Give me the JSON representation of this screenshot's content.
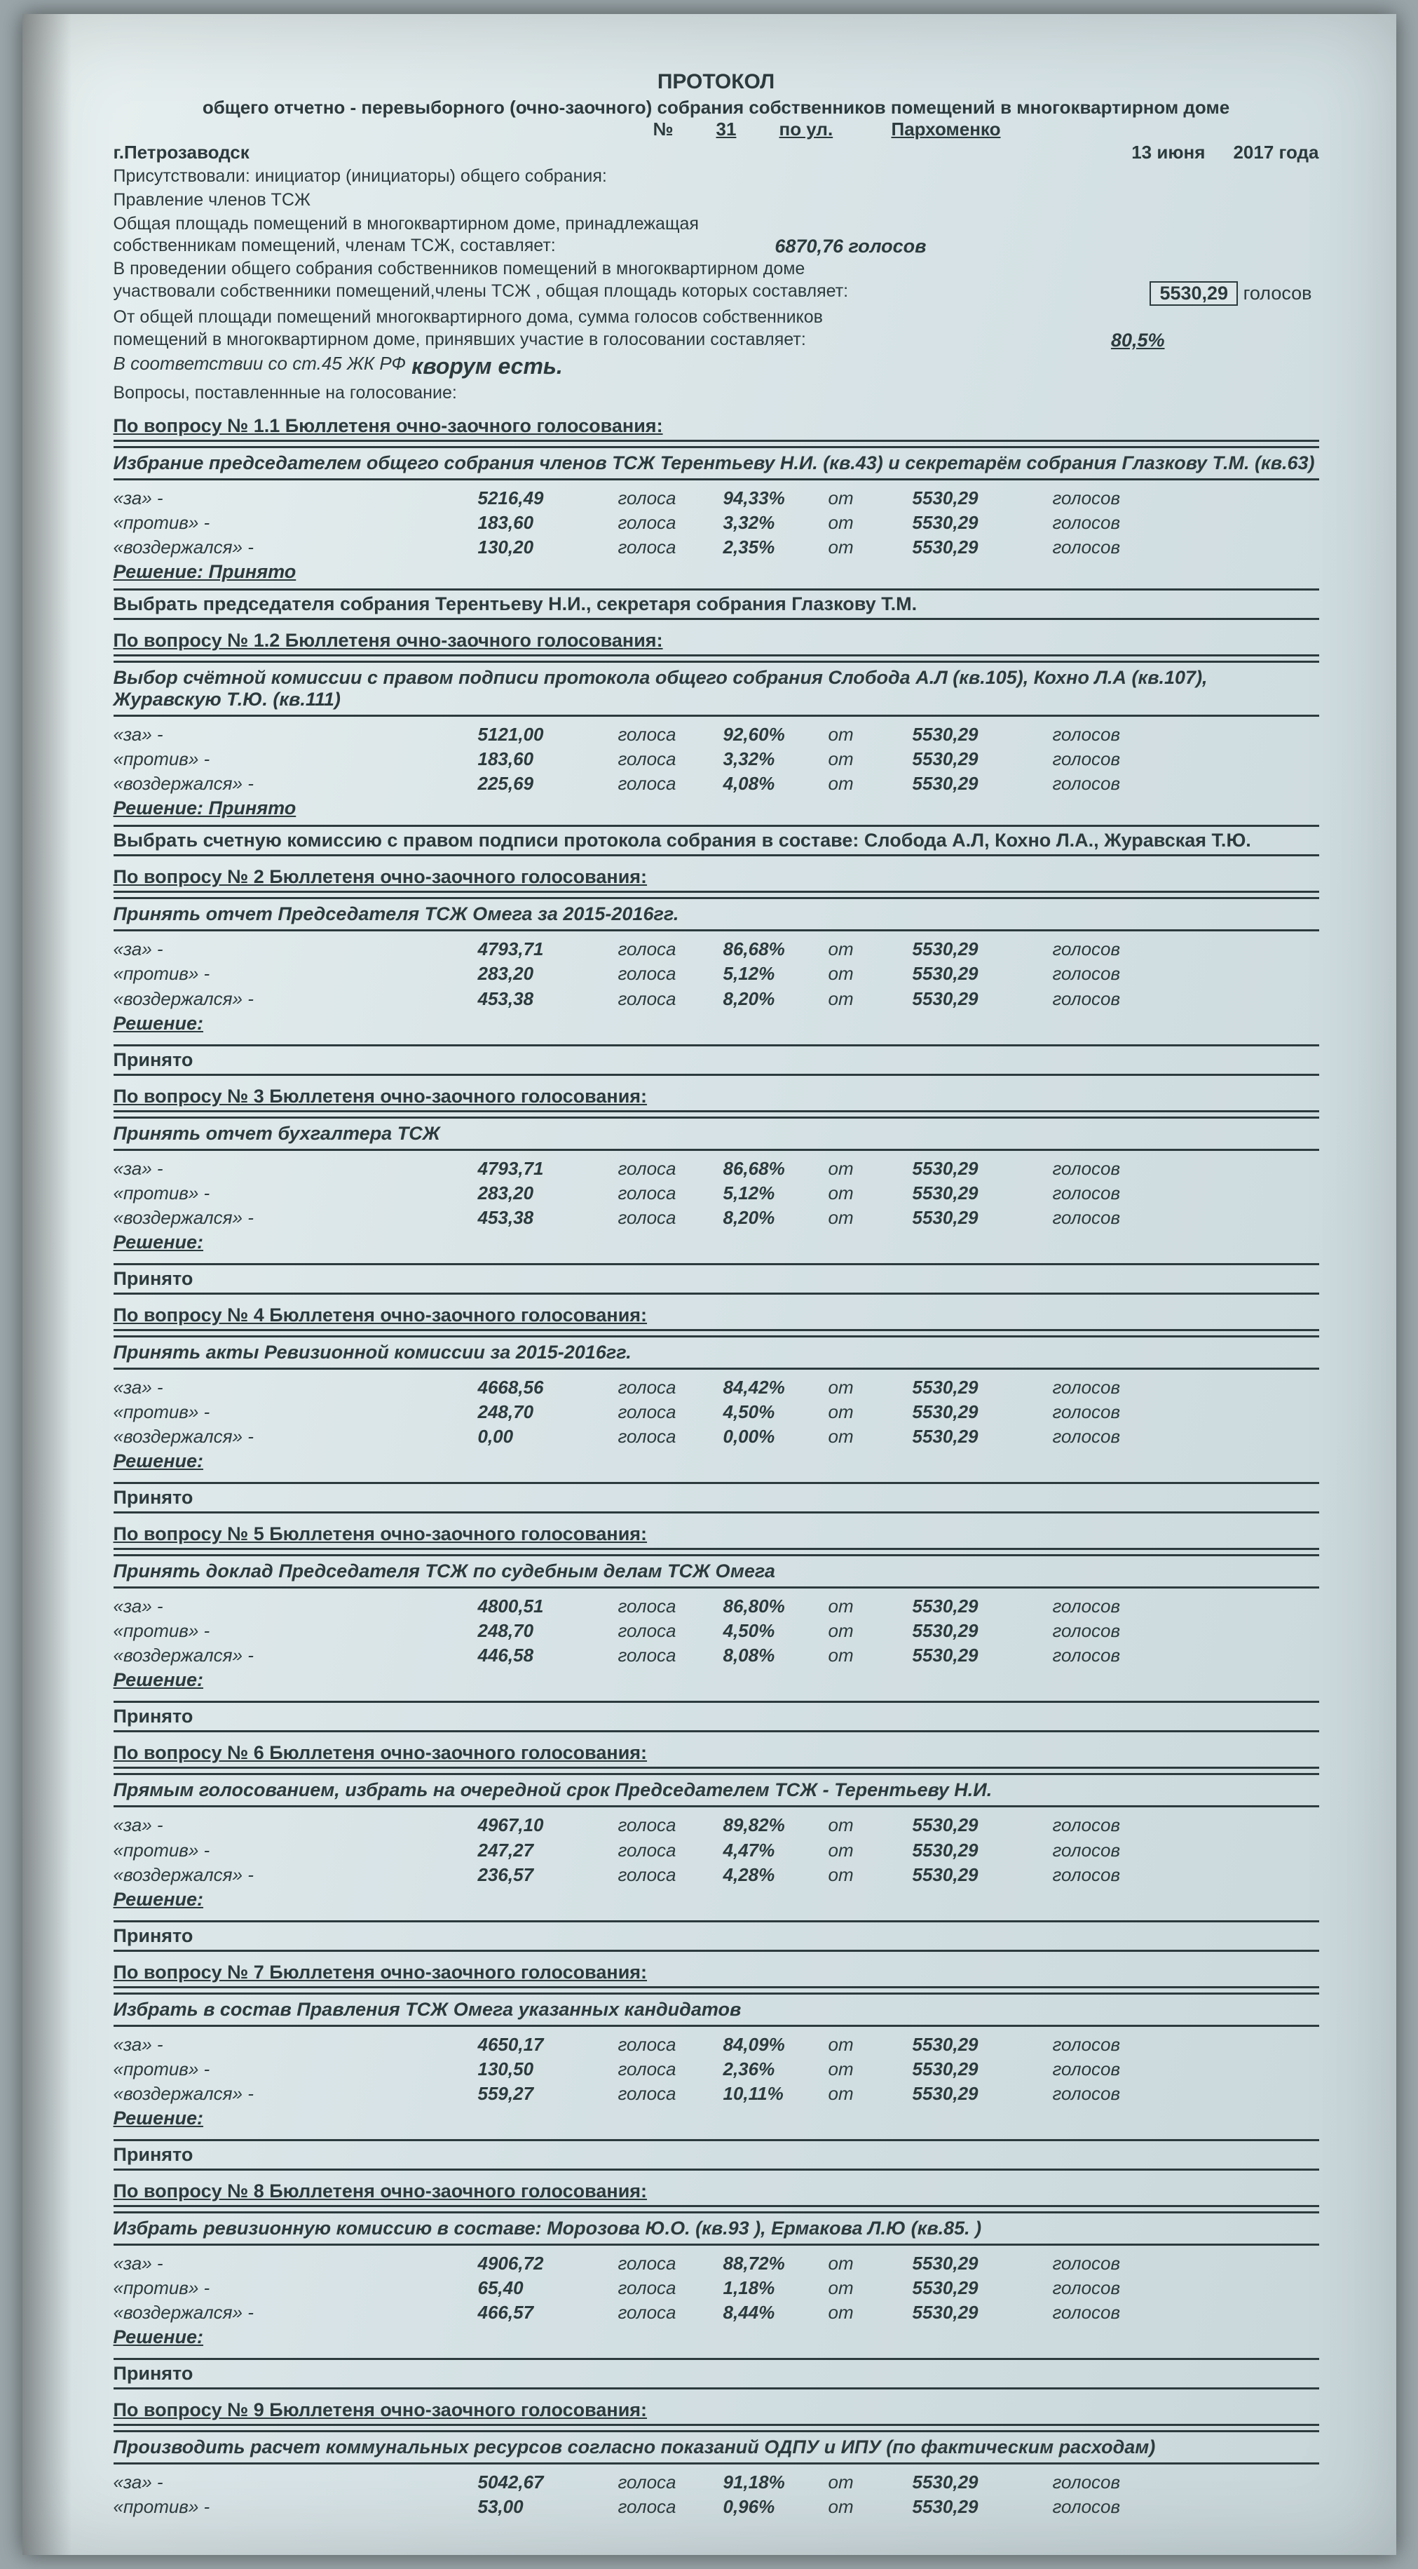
{
  "header": {
    "title": "ПРОТОКОЛ",
    "subtitle": "общего отчетно - перевыборного (очно-заочного) собрания собственников помещений в многоквартирном доме",
    "num_label": "№",
    "num": "31",
    "street_label": "по ул.",
    "street": "Пархоменко",
    "city": "г.Петрозаводск",
    "date": "13 июня",
    "year": "2017 года",
    "present": "Присутствовали: инициатор (инициаторы) общего собрания:",
    "board": "Правление членов ТСЖ",
    "area_line1": "Общая площадь помещений в многоквартирном доме, принадлежащая",
    "area_line2": "собственникам помещений, членам ТСЖ, составляет:",
    "area_val": "6870,76 голосов",
    "part_line1": "В проведении общего собрания собственников помещений в многоквартирном доме",
    "part_line2": "участвовали собственники помещений,члены  ТСЖ , общая площадь которых составляет:",
    "part_val": "5530,29",
    "part_unit": "голосов",
    "share_line": "От общей площади помещений многоквартирного дома, сумма голосов собственников",
    "share_line2": "помещений в многоквартирном доме, принявших участие в голосовании составляет:",
    "share_val": "80,5%",
    "quorum": "В соответствии со ст.45 ЖК РФ",
    "quorum_big": "кворум есть.",
    "questions_label": "Вопросы, поставленнные на голосование:"
  },
  "labels": {
    "za": "«за» -",
    "protiv": "«против» -",
    "vozd": "«воздержался» -",
    "golosa": "голоса",
    "ot": "от",
    "golosov": "голосов",
    "total": "5530,29",
    "resh": "Решение:",
    "prin": "Принято",
    "resh_prin": "Решение: Принято"
  },
  "q": [
    {
      "head": "По вопросу № 1.1 Бюллетеня очно-заочного голосования:",
      "title": "Избрание председателем общего собрания членов ТСЖ Терентьеву Н.И. (кв.43) и секретарём собрания Глазкову Т.М. (кв.63)",
      "rows": [
        [
          "5216,49",
          "94,33%"
        ],
        [
          "183,60",
          "3,32%"
        ],
        [
          "130,20",
          "2,35%"
        ]
      ],
      "decision_inline": "Решение: Принято",
      "extra": "Выбрать председателя собрания Терентьеву Н.И., секретаря собрания Глазкову Т.М."
    },
    {
      "head": "По вопросу № 1.2 Бюллетеня очно-заочного голосования:",
      "title": "Выбор счётной комиссии с правом подписи протокола общего собрания  Слобода А.Л (кв.105),  Кохно Л.А (кв.107), Журавскую Т.Ю. (кв.111)",
      "rows": [
        [
          "5121,00",
          "92,60%"
        ],
        [
          "183,60",
          "3,32%"
        ],
        [
          "225,69",
          "4,08%"
        ]
      ],
      "decision_inline": "Решение: Принято",
      "extra": "Выбрать счетную комиссию с правом подписи протокола собрания в составе: Слобода А.Л, Кохно Л.А., Журавская Т.Ю."
    },
    {
      "head": "По вопросу № 2 Бюллетеня очно-заочного голосования:",
      "title": "Принять  отчет Председателя  ТСЖ Омега за 2015-2016гг.",
      "rows": [
        [
          "4793,71",
          "86,68%"
        ],
        [
          "283,20",
          "5,12%"
        ],
        [
          "453,38",
          "8,20%"
        ]
      ]
    },
    {
      "head": "По вопросу № 3 Бюллетеня очно-заочного голосования:",
      "title": "Принять  отчет бухгалтера  ТСЖ",
      "rows": [
        [
          "4793,71",
          "86,68%"
        ],
        [
          "283,20",
          "5,12%"
        ],
        [
          "453,38",
          "8,20%"
        ]
      ]
    },
    {
      "head": "По вопросу № 4 Бюллетеня очно-заочного голосования:",
      "title": "Принять  акты Ревизионной  комиссии за  2015-2016гг.",
      "rows": [
        [
          "4668,56",
          "84,42%"
        ],
        [
          "248,70",
          "4,50%"
        ],
        [
          "0,00",
          "0,00%"
        ]
      ]
    },
    {
      "head": "По вопросу № 5 Бюллетеня очно-заочного голосования:",
      "title": "Принять доклад Председателя  ТСЖ  по  судебным  делам  ТСЖ Омега",
      "rows": [
        [
          "4800,51",
          "86,80%"
        ],
        [
          "248,70",
          "4,50%"
        ],
        [
          "446,58",
          "8,08%"
        ]
      ]
    },
    {
      "head": "По вопросу № 6 Бюллетеня очно-заочного голосования:",
      "title": "Прямым голосованием, избрать на очередной срок Председателем ТСЖ -  Терентьеву  Н.И.",
      "rows": [
        [
          "4967,10",
          "89,82%"
        ],
        [
          "247,27",
          "4,47%"
        ],
        [
          "236,57",
          "4,28%"
        ]
      ]
    },
    {
      "head": "По вопросу № 7 Бюллетеня очно-заочного голосования:",
      "title": "Избрать в состав Правления ТСЖ Омега  указанных кандидатов",
      "rows": [
        [
          "4650,17",
          "84,09%"
        ],
        [
          "130,50",
          "2,36%"
        ],
        [
          "559,27",
          "10,11%"
        ]
      ]
    },
    {
      "head": "По вопросу № 8 Бюллетеня очно-заочного голосования:",
      "title": "Избрать ревизионную комиссию в составе: Морозова Ю.О. (кв.93 ), Ермакова Л.Ю (кв.85. )",
      "rows": [
        [
          "4906,72",
          "88,72%"
        ],
        [
          "65,40",
          "1,18%"
        ],
        [
          "466,57",
          "8,44%"
        ]
      ]
    },
    {
      "head": "По вопросу № 9 Бюллетеня очно-заочного голосования:",
      "title": "Производить расчет коммунальных ресурсов согласно показаний ОДПУ и ИПУ (по фактическим расходам)",
      "rows": [
        [
          "5042,67",
          "91,18%"
        ],
        [
          "53,00",
          "0,96%"
        ]
      ],
      "partial": true
    }
  ]
}
